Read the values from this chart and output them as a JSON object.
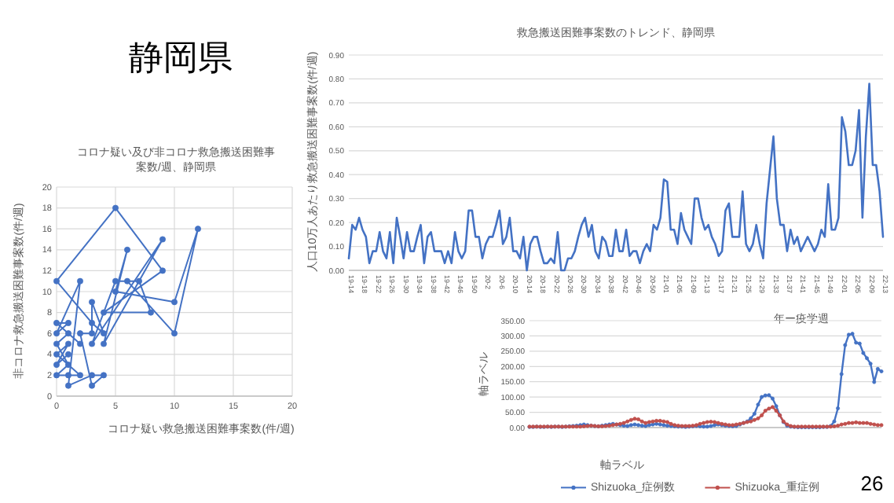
{
  "chart_data": [
    {
      "type": "line",
      "title": "コロナ疑い及び非コロナ救急搬送困難事案数/週、静岡県",
      "xlabel": "コロナ疑い救急搬送困難事案数(件/週)",
      "ylabel": "非コロナ救急搬送困難事案数(件/週)",
      "annotations": [
        "静岡県"
      ],
      "marker": "circle",
      "grid": true,
      "xlim": [
        0,
        20
      ],
      "xticks": [
        0,
        5,
        10,
        15,
        20
      ],
      "ylim": [
        0,
        20
      ],
      "yticks": [
        0,
        2,
        4,
        6,
        8,
        10,
        12,
        14,
        16,
        18,
        20
      ],
      "series": [
        {
          "color": "#4472c4",
          "x": [
            1,
            0,
            1,
            0,
            2,
            1,
            0,
            1,
            0,
            1,
            2,
            0,
            1,
            0,
            2,
            1,
            3,
            4,
            3,
            2,
            3,
            3,
            4,
            3,
            0,
            5,
            9,
            4,
            8,
            7,
            5,
            3,
            9,
            4,
            6,
            5,
            10,
            12,
            10,
            6
          ],
          "values": [
            4,
            3,
            5,
            4,
            2,
            2,
            2,
            3,
            5,
            6,
            5,
            7,
            7,
            6,
            11,
            1,
            2,
            2,
            1,
            6,
            6,
            9,
            6,
            7,
            11,
            18,
            12,
            8,
            8,
            11,
            11,
            5,
            15,
            5,
            14,
            10,
            9,
            16,
            6,
            11
          ]
        }
      ]
    },
    {
      "type": "line",
      "title": "救急搬送困難事案数のトレンド、静岡県",
      "xlabel": "年ー疫学週",
      "ylabel": "人口10万人あたり救急搬送困難事案数(件/週)",
      "grid": "y",
      "ylim": [
        0,
        0.9
      ],
      "yticks": [
        {
          "value": 0,
          "label": "0.00"
        },
        {
          "value": 0.1,
          "label": "0.10"
        },
        {
          "value": 0.2,
          "label": "0.20"
        },
        {
          "value": 0.3,
          "label": "0.30"
        },
        {
          "value": 0.4,
          "label": "0.40"
        },
        {
          "value": 0.5,
          "label": "0.50"
        },
        {
          "value": 0.6,
          "label": "0.60"
        },
        {
          "value": 0.7,
          "label": "0.70"
        },
        {
          "value": 0.8,
          "label": "0.80"
        },
        {
          "value": 0.9,
          "label": "0.90"
        }
      ],
      "categories": [
        "19-14",
        null,
        null,
        null,
        "19-18",
        null,
        null,
        null,
        "19-22",
        null,
        null,
        null,
        "19-26",
        null,
        null,
        null,
        "19-30",
        null,
        null,
        null,
        "19-34",
        null,
        null,
        null,
        "19-38",
        null,
        null,
        null,
        "19-42",
        null,
        null,
        null,
        "19-46",
        null,
        null,
        null,
        "19-50",
        null,
        null,
        null,
        "20-2",
        null,
        null,
        null,
        "20-6",
        null,
        null,
        null,
        "20-10",
        null,
        null,
        null,
        "20-14",
        null,
        null,
        null,
        "20-18",
        null,
        null,
        null,
        "20-22",
        null,
        null,
        null,
        "20-26",
        null,
        null,
        null,
        "20-30",
        null,
        null,
        null,
        "20-34",
        null,
        null,
        null,
        "20-38",
        null,
        null,
        null,
        "20-42",
        null,
        null,
        null,
        "20-46",
        null,
        null,
        null,
        "20-50",
        null,
        null,
        null,
        "21-01",
        null,
        null,
        null,
        "21-05",
        null,
        null,
        null,
        "21-09",
        null,
        null,
        null,
        "21-13",
        null,
        null,
        null,
        "21-17",
        null,
        null,
        null,
        "21-21",
        null,
        null,
        null,
        "21-25",
        null,
        null,
        null,
        "21-29",
        null,
        null,
        null,
        "21-33",
        null,
        null,
        null,
        "21-37",
        null,
        null,
        null,
        "21-41",
        null,
        null,
        null,
        "21-45",
        null,
        null,
        null,
        "21-49",
        null,
        null,
        null,
        "22-01",
        null,
        null,
        null,
        "22-05",
        null,
        null,
        null,
        "22-09",
        null,
        null,
        null,
        "22-13"
      ],
      "series": [
        {
          "color": "#4472c4",
          "values": [
            0.05,
            0.19,
            0.17,
            0.22,
            0.17,
            0.14,
            0.03,
            0.08,
            0.08,
            0.16,
            0.08,
            0.05,
            0.16,
            0.03,
            0.22,
            0.14,
            0.05,
            0.16,
            0.08,
            0.08,
            0.14,
            0.19,
            0.03,
            0.14,
            0.16,
            0.08,
            0.08,
            0.08,
            0.03,
            0.08,
            0.03,
            0.16,
            0.08,
            0.05,
            0.08,
            0.25,
            0.25,
            0.14,
            0.14,
            0.05,
            0.11,
            0.14,
            0.14,
            0.19,
            0.25,
            0.11,
            0.14,
            0.22,
            0.08,
            0.08,
            0.05,
            0.14,
            0.0,
            0.11,
            0.14,
            0.14,
            0.08,
            0.03,
            0.03,
            0.05,
            0.03,
            0.16,
            0.0,
            0.0,
            0.05,
            0.05,
            0.08,
            0.14,
            0.19,
            0.22,
            0.14,
            0.19,
            0.08,
            0.05,
            0.14,
            0.12,
            0.06,
            0.06,
            0.17,
            0.08,
            0.08,
            0.17,
            0.06,
            0.08,
            0.08,
            0.03,
            0.08,
            0.11,
            0.08,
            0.19,
            0.17,
            0.22,
            0.38,
            0.37,
            0.17,
            0.17,
            0.11,
            0.24,
            0.17,
            0.14,
            0.11,
            0.3,
            0.3,
            0.22,
            0.17,
            0.19,
            0.14,
            0.11,
            0.06,
            0.08,
            0.25,
            0.28,
            0.14,
            0.14,
            0.14,
            0.33,
            0.11,
            0.08,
            0.11,
            0.19,
            0.11,
            0.05,
            0.28,
            0.42,
            0.56,
            0.3,
            0.19,
            0.19,
            0.08,
            0.17,
            0.11,
            0.14,
            0.08,
            0.11,
            0.14,
            0.11,
            0.08,
            0.11,
            0.17,
            0.14,
            0.36,
            0.17,
            0.17,
            0.22,
            0.64,
            0.58,
            0.44,
            0.44,
            0.5,
            0.67,
            0.22,
            0.56,
            0.78,
            0.44,
            0.44,
            0.33,
            0.14
          ]
        }
      ]
    },
    {
      "type": "line",
      "xlabel": "軸ラベル",
      "ylabel": "軸ラベル",
      "annotations": [
        "26"
      ],
      "marker": "circle",
      "grid": "y",
      "legend": "bottom",
      "ylim": [
        0,
        350
      ],
      "yticks": [
        {
          "value": 0,
          "label": "0.00"
        },
        {
          "value": 50,
          "label": "50.00"
        },
        {
          "value": 100,
          "label": "100.00"
        },
        {
          "value": 150,
          "label": "150.00"
        },
        {
          "value": 200,
          "label": "200.00"
        },
        {
          "value": 250,
          "label": "250.00"
        },
        {
          "value": 300,
          "label": "300.00"
        },
        {
          "value": 350,
          "label": "350.00"
        }
      ],
      "categories": [
        null,
        null,
        null,
        null,
        null,
        null,
        null,
        null,
        null,
        null,
        null,
        null,
        null,
        null,
        null,
        null,
        null,
        null,
        null,
        null,
        null,
        null,
        null,
        null,
        null,
        null,
        null,
        null,
        null,
        null,
        null,
        null,
        null,
        null,
        null,
        null,
        null,
        null,
        null,
        null,
        null,
        null,
        null,
        null,
        null,
        null,
        null,
        null,
        null,
        null,
        null,
        null,
        null,
        null,
        null,
        null,
        null,
        null,
        null,
        null,
        null,
        null,
        null,
        null,
        null,
        null,
        null,
        null,
        null,
        null,
        null,
        null,
        null,
        null,
        null,
        null,
        null,
        null,
        null,
        null,
        null,
        null,
        null,
        null,
        null,
        null,
        null,
        null,
        null,
        null,
        null,
        null,
        null,
        null,
        null,
        null,
        null,
        null
      ],
      "series": [
        {
          "name": "Shizuoka_症例数",
          "color": "#4472c4",
          "values": [
            2,
            2,
            3,
            2,
            2,
            3,
            2,
            3,
            3,
            2,
            3,
            4,
            5,
            6,
            8,
            10,
            8,
            6,
            5,
            4,
            6,
            8,
            10,
            12,
            10,
            8,
            6,
            5,
            8,
            10,
            8,
            6,
            5,
            8,
            10,
            12,
            10,
            8,
            6,
            5,
            4,
            3,
            3,
            2,
            3,
            4,
            5,
            4,
            3,
            3,
            5,
            8,
            10,
            8,
            6,
            5,
            4,
            5,
            10,
            15,
            20,
            30,
            45,
            75,
            100,
            105,
            106,
            95,
            70,
            40,
            18,
            6,
            3,
            2,
            1,
            1,
            1,
            1,
            1,
            1,
            1,
            2,
            2,
            5,
            20,
            63,
            175,
            270,
            304,
            307,
            278,
            275,
            244,
            227,
            209,
            149,
            192,
            184
          ]
        },
        {
          "name": "Shizuoka_重症例",
          "color": "#c0504d",
          "values": [
            3,
            3,
            3,
            3,
            3,
            3,
            3,
            3,
            3,
            3,
            3,
            3,
            3,
            3,
            3,
            4,
            5,
            6,
            5,
            4,
            4,
            5,
            6,
            8,
            10,
            12,
            15,
            20,
            25,
            29,
            27,
            20,
            15,
            18,
            20,
            22,
            22,
            20,
            18,
            12,
            8,
            6,
            5,
            5,
            5,
            6,
            8,
            12,
            15,
            18,
            19,
            18,
            15,
            12,
            10,
            8,
            8,
            10,
            12,
            15,
            18,
            20,
            25,
            30,
            40,
            55,
            62,
            67,
            55,
            40,
            20,
            10,
            5,
            3,
            3,
            3,
            3,
            3,
            3,
            3,
            3,
            3,
            3,
            3,
            4,
            6,
            10,
            12,
            15,
            15,
            17,
            15,
            15,
            15,
            12,
            10,
            8,
            8
          ]
        }
      ]
    }
  ]
}
